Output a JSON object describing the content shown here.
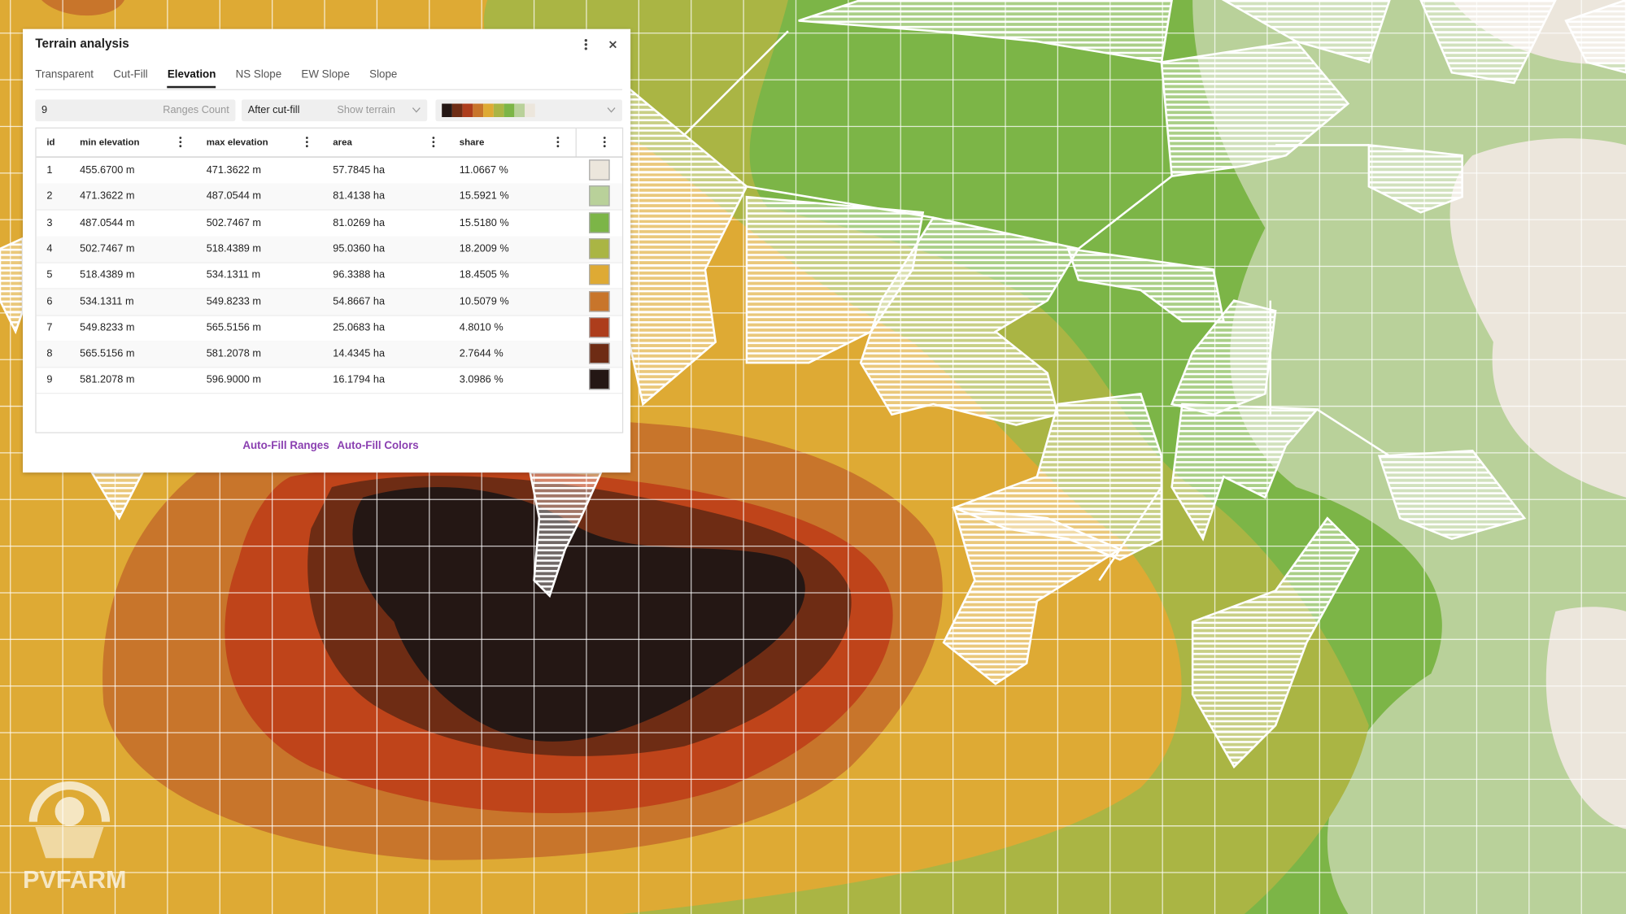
{
  "panel": {
    "title": "Terrain analysis",
    "tabs": [
      "Transparent",
      "Cut-Fill",
      "Elevation",
      "NS Slope",
      "EW Slope",
      "Slope"
    ],
    "ranges_count": "9",
    "ranges_count_label": "Ranges Count",
    "mode": "After cut-fill",
    "show_terrain": "Show terrain",
    "table": {
      "columns": [
        "id",
        "min elevation",
        "max elevation",
        "area",
        "share"
      ],
      "rows": [
        [
          "1",
          "455.6700 m",
          "471.3622 m",
          "57.7845 ha",
          "11.0667 %"
        ],
        [
          "2",
          "471.3622 m",
          "487.0544 m",
          "81.4138 ha",
          "15.5921 %"
        ],
        [
          "3",
          "487.0544 m",
          "502.7467 m",
          "81.0269 ha",
          "15.5180 %"
        ],
        [
          "4",
          "502.7467 m",
          "518.4389 m",
          "95.0360 ha",
          "18.2009 %"
        ],
        [
          "5",
          "518.4389 m",
          "534.1311 m",
          "96.3388 ha",
          "18.4505 %"
        ],
        [
          "6",
          "534.1311 m",
          "549.8233 m",
          "54.8667 ha",
          "10.5079 %"
        ],
        [
          "7",
          "549.8233 m",
          "565.5156 m",
          "25.0683 ha",
          "4.8010 %"
        ],
        [
          "8",
          "565.5156 m",
          "581.2078 m",
          "14.4345 ha",
          "2.7644 %"
        ],
        [
          "9",
          "581.2078 m",
          "596.9000 m",
          "16.1794 ha",
          "3.0986 %"
        ]
      ],
      "colors": [
        "#ece6dc",
        "#b9d19a",
        "#7cb547",
        "#aab544",
        "#deaa34",
        "#c8752b",
        "#ad3d1c",
        "#6e2c14",
        "#241714"
      ]
    },
    "buttons": [
      "Auto-Fill Ranges",
      "Auto-Fill Colors"
    ]
  },
  "logo": "PVFARM"
}
